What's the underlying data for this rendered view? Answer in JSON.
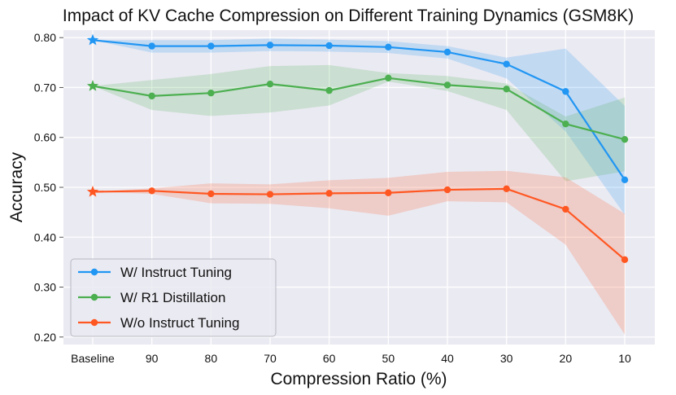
{
  "chart_data": {
    "type": "line",
    "title": "Impact of KV Cache Compression on Different Training Dynamics (GSM8K)",
    "xlabel": "Compression Ratio (%)",
    "ylabel": "Accuracy",
    "categories": [
      "Baseline",
      "90",
      "80",
      "70",
      "60",
      "50",
      "40",
      "30",
      "20",
      "10"
    ],
    "ylim": [
      0.185,
      0.815
    ],
    "yticks": [
      "0.20",
      "0.30",
      "0.40",
      "0.50",
      "0.60",
      "0.70",
      "0.80"
    ],
    "grid": true,
    "legend_position": "bottom-left",
    "series": [
      {
        "name": "W/ Instruct Tuning",
        "color": "#2196f3",
        "values": [
          0.795,
          0.783,
          0.783,
          0.785,
          0.784,
          0.781,
          0.771,
          0.747,
          0.692,
          0.515
        ],
        "band_low": [
          0.795,
          0.77,
          0.77,
          0.773,
          0.772,
          0.769,
          0.758,
          0.718,
          0.612,
          0.445
        ],
        "band_high": [
          0.795,
          0.795,
          0.795,
          0.798,
          0.796,
          0.793,
          0.783,
          0.76,
          0.778,
          0.663
        ]
      },
      {
        "name": "W/ R1 Distillation",
        "color": "#4caf50",
        "values": [
          0.703,
          0.683,
          0.689,
          0.707,
          0.694,
          0.719,
          0.705,
          0.697,
          0.627,
          0.596
        ],
        "band_low": [
          0.703,
          0.655,
          0.643,
          0.65,
          0.664,
          0.712,
          0.693,
          0.655,
          0.512,
          0.532
        ],
        "band_high": [
          0.703,
          0.715,
          0.727,
          0.743,
          0.745,
          0.729,
          0.723,
          0.708,
          0.642,
          0.68
        ]
      },
      {
        "name": "W/o Instruct Tuning",
        "color": "#ff5722",
        "values": [
          0.491,
          0.493,
          0.487,
          0.486,
          0.488,
          0.489,
          0.495,
          0.497,
          0.456,
          0.355
        ],
        "band_low": [
          0.491,
          0.487,
          0.468,
          0.467,
          0.458,
          0.443,
          0.472,
          0.47,
          0.385,
          0.205
        ],
        "band_high": [
          0.491,
          0.498,
          0.508,
          0.506,
          0.514,
          0.519,
          0.531,
          0.533,
          0.52,
          0.447
        ]
      }
    ]
  }
}
